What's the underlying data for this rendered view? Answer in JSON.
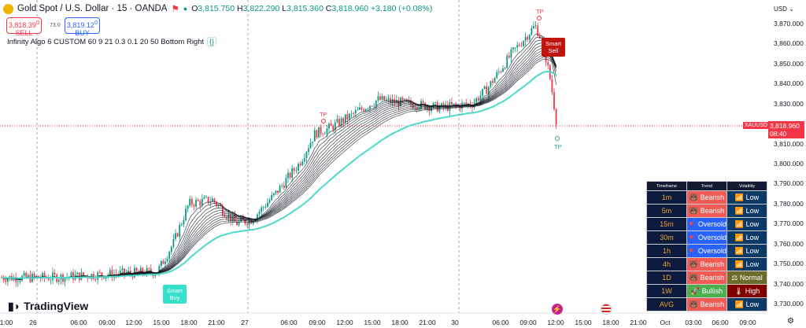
{
  "header": {
    "symbol": "Gold Spot / U.S. Dollar · 15 · OANDA",
    "open": "3,815.750",
    "high": "3,822.290",
    "low": "3,815.360",
    "close": "3,818.960",
    "change": "+3.180 (+0.08%)",
    "o": "O",
    "h": "H",
    "l": "L",
    "c": "C"
  },
  "trade": {
    "sell_price": "3,818.39",
    "sell_sup": "0",
    "sell_label": "SELL",
    "spread": "73.0",
    "buy_price": "3,819.12",
    "buy_sup": "0",
    "buy_label": "BUY"
  },
  "indicator": {
    "label": "Infinity Algo 6 CUSTOM 60 9 21 0.3 0.1 20 50 Bottom Right",
    "badge": "{}"
  },
  "price_axis": {
    "currency": "USD",
    "ticks": [
      "3,870.000",
      "3,860.000",
      "3,850.000",
      "3,840.000",
      "3,830.000",
      "3,820.000",
      "3,810.000",
      "3,800.000",
      "3,790.000",
      "3,780.000",
      "3,770.000",
      "3,760.000",
      "3,750.000",
      "3,740.000",
      "3,730.000"
    ],
    "current_price": "3,818.960",
    "countdown": "08:40",
    "symbol_tag": "XAUUSD"
  },
  "time_axis": {
    "ticks": [
      "1:00",
      "26",
      "06:00",
      "09:00",
      "12:00",
      "15:00",
      "18:00",
      "21:00",
      "27",
      "06:00",
      "09:00",
      "12:00",
      "15:00",
      "18:00",
      "21:00",
      "30",
      "06:00",
      "09:00",
      "12:00",
      "15:00",
      "18:00",
      "21:00",
      "Oct",
      "03:00",
      "06:00",
      "09:00"
    ]
  },
  "signals": {
    "smart_sell": "Smart Sell",
    "smart_buy": "Smart Buy",
    "tp": "TP"
  },
  "brand": "TradingView",
  "table": {
    "headers": [
      "Timeframe",
      "Trend",
      "Volatility"
    ],
    "rows": [
      [
        "1m",
        "Bearish",
        "Low"
      ],
      [
        "5m",
        "Bearish",
        "Low"
      ],
      [
        "15m",
        "Oversold",
        "Low"
      ],
      [
        "30m",
        "Oversold",
        "Low"
      ],
      [
        "1h",
        "Oversold",
        "Low"
      ],
      [
        "4h",
        "Bearish",
        "Low"
      ],
      [
        "1D",
        "Bearish",
        "Normal"
      ],
      [
        "1W",
        "Bullish",
        "High"
      ],
      [
        "AVG",
        "Bearish",
        "Low"
      ]
    ]
  },
  "colors": {
    "up": "#089981",
    "down": "#f23645",
    "ema": "#131722",
    "fast_line": "#4dd9c8",
    "bearish": "#f25a55",
    "oversold": "#2962ff",
    "bullish": "#4caf50",
    "low": "#0b3a66",
    "normal": "#6b6b2a",
    "high": "#800000"
  }
}
